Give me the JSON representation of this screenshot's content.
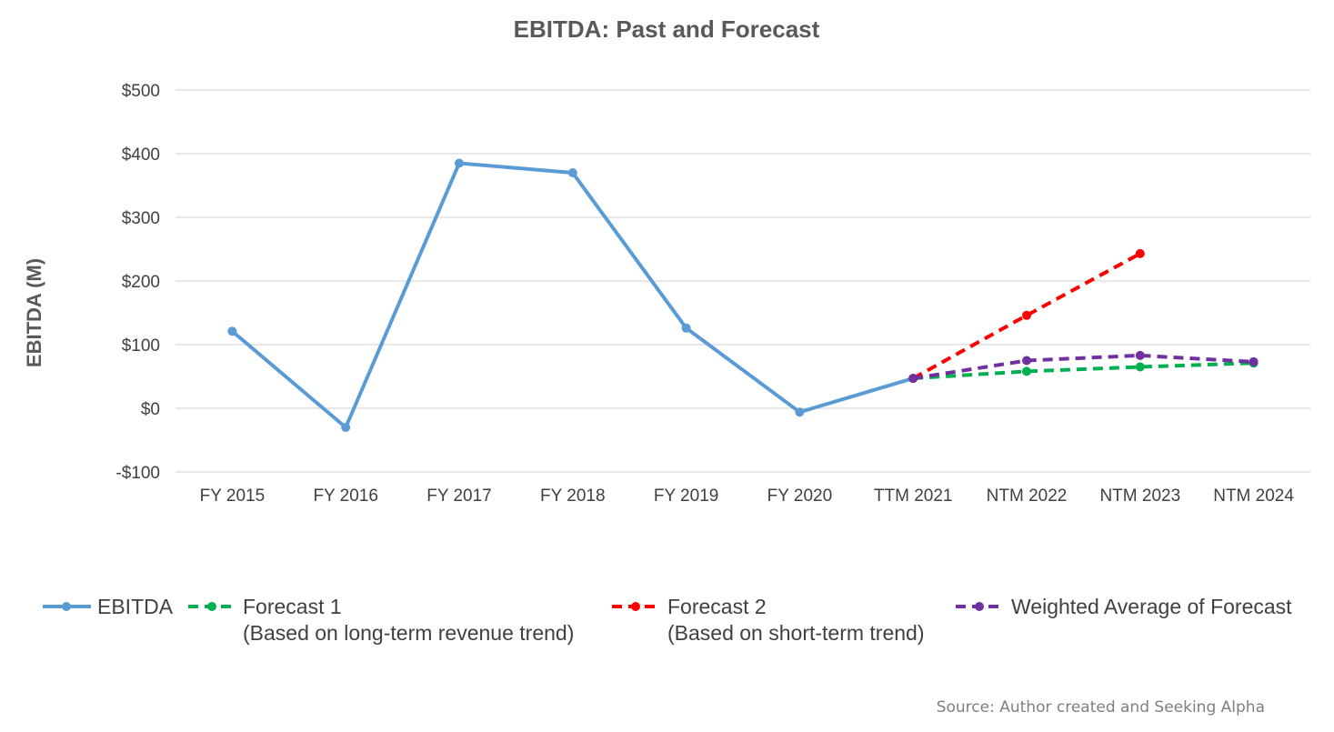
{
  "chart_data": {
    "type": "line",
    "title": "EBITDA:  Past and Forecast",
    "xlabel": "",
    "ylabel": "EBITDA (M)",
    "ylim": [
      -100,
      500
    ],
    "y_ticks": [
      500,
      400,
      300,
      200,
      100,
      0,
      -100
    ],
    "y_tick_labels": [
      "$500",
      "$400",
      "$300",
      "$200",
      "$100",
      "$0",
      "-$100"
    ],
    "categories": [
      "FY 2015",
      "FY 2016",
      "FY 2017",
      "FY 2018",
      "FY 2019",
      "FY 2020",
      "TTM 2021",
      "NTM 2022",
      "NTM 2023",
      "NTM 2024"
    ],
    "grid": "horizontal",
    "legend_position": "bottom",
    "series": [
      {
        "name": "EBITDA",
        "color": "#5b9bd5",
        "dash": "solid",
        "values": [
          121,
          -30,
          385,
          370,
          126,
          -6,
          47,
          null,
          null,
          null
        ]
      },
      {
        "name": "Forecast 1",
        "subname": "(Based on long-term revenue trend)",
        "color": "#00b050",
        "dash": "dashed",
        "values": [
          null,
          null,
          null,
          null,
          null,
          null,
          47,
          58,
          65,
          71
        ]
      },
      {
        "name": "Forecast 2",
        "subname": "(Based on short-term trend)",
        "color": "#ff0000",
        "dash": "dashed",
        "values": [
          null,
          null,
          null,
          null,
          null,
          null,
          47,
          146,
          243,
          null
        ]
      },
      {
        "name": "Weighted Average of Forecast",
        "color": "#7030a0",
        "dash": "dashed",
        "values": [
          null,
          null,
          null,
          null,
          null,
          null,
          47,
          75,
          83,
          73
        ]
      }
    ],
    "source_note": "Source: Author created and Seeking Alpha"
  }
}
